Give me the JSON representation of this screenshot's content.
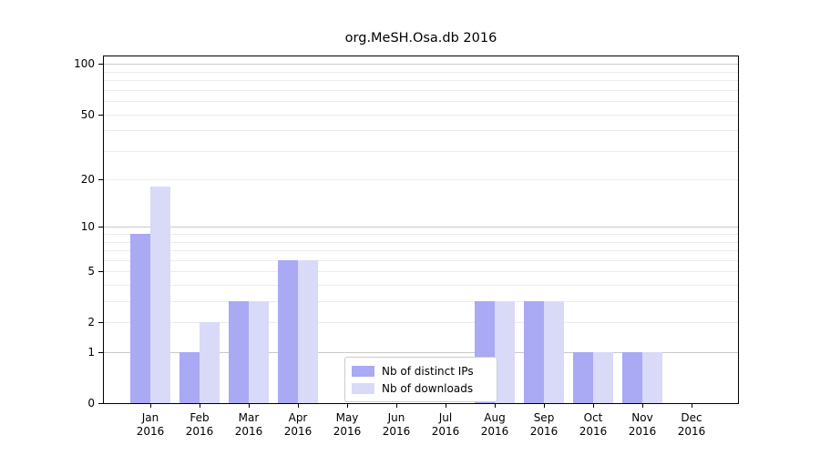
{
  "title": "org.MeSH.Osa.db 2016",
  "chart_data": {
    "type": "bar",
    "title": "org.MeSH.Osa.db 2016",
    "months": [
      "Jan",
      "Feb",
      "Mar",
      "Apr",
      "May",
      "Jun",
      "Jul",
      "Aug",
      "Sep",
      "Oct",
      "Nov",
      "Dec"
    ],
    "year_label": "2016",
    "series": [
      {
        "name": "Nb of distinct IPs",
        "color": "#a9a9f4",
        "values": [
          9,
          1,
          3,
          6,
          0,
          0,
          0,
          3,
          3,
          1,
          1,
          0
        ]
      },
      {
        "name": "Nb of downloads",
        "color": "#d9d9f8",
        "values": [
          18,
          2,
          3,
          6,
          0,
          0,
          0,
          3,
          3,
          1,
          1,
          0
        ]
      }
    ],
    "yscale": "log1p",
    "ylim": [
      0,
      111
    ],
    "ytick_labels": [
      0,
      1,
      2,
      5,
      10,
      20,
      50,
      100
    ],
    "major_gridlines": [
      1,
      10,
      100
    ],
    "minor_gridlines": [
      2,
      3,
      4,
      5,
      6,
      7,
      8,
      9,
      20,
      30,
      40,
      50,
      60,
      70,
      80,
      90
    ],
    "grid": {
      "major_color": "#c9c9c9",
      "minor_color": "#ebebeb"
    },
    "legend_position": "lower center"
  }
}
